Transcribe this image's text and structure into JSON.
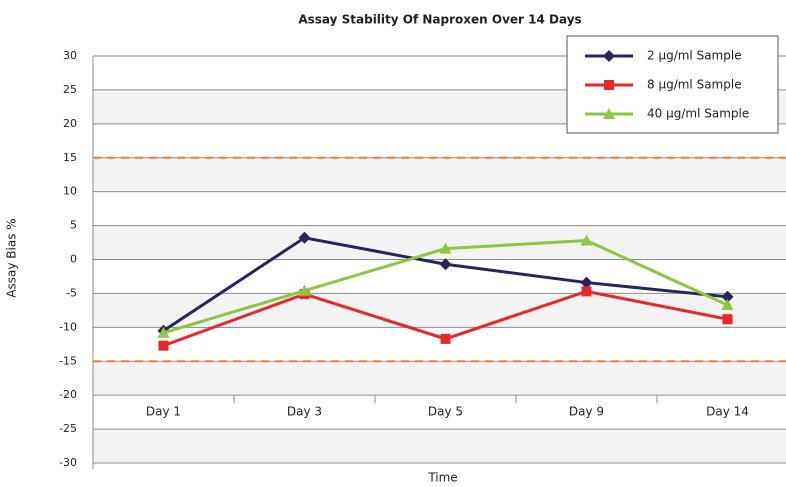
{
  "chart_data": {
    "type": "line",
    "title": "Assay Stability Of Naproxen Over 14 Days",
    "xlabel": "Time",
    "ylabel": "Assay Bias %",
    "categories": [
      "Day 1",
      "Day 3",
      "Day 5",
      "Day 9",
      "Day 14"
    ],
    "series": [
      {
        "name": "2 µg/ml Sample",
        "color": "#27245e",
        "marker": "diamond",
        "values": [
          -10.5,
          3.2,
          -0.7,
          -3.4,
          -5.5
        ]
      },
      {
        "name": "8 µg/ml Sample",
        "color": "#e8262b",
        "marker": "square",
        "values": [
          -12.7,
          -5.1,
          -11.7,
          -4.7,
          -8.8
        ]
      },
      {
        "name": "40 µg/ml Sample",
        "color": "#8dc63f",
        "marker": "triangle",
        "values": [
          -10.8,
          -4.6,
          1.6,
          2.8,
          -6.7
        ]
      }
    ],
    "ylim": [
      -30,
      30
    ],
    "yticks": [
      -30,
      -25,
      -20,
      -15,
      -10,
      -5,
      0,
      5,
      10,
      15,
      20,
      25,
      30
    ],
    "reference_lines": [
      15,
      -15
    ],
    "reference_color": "#f07f2b",
    "grid": true,
    "legend": "upper right"
  }
}
